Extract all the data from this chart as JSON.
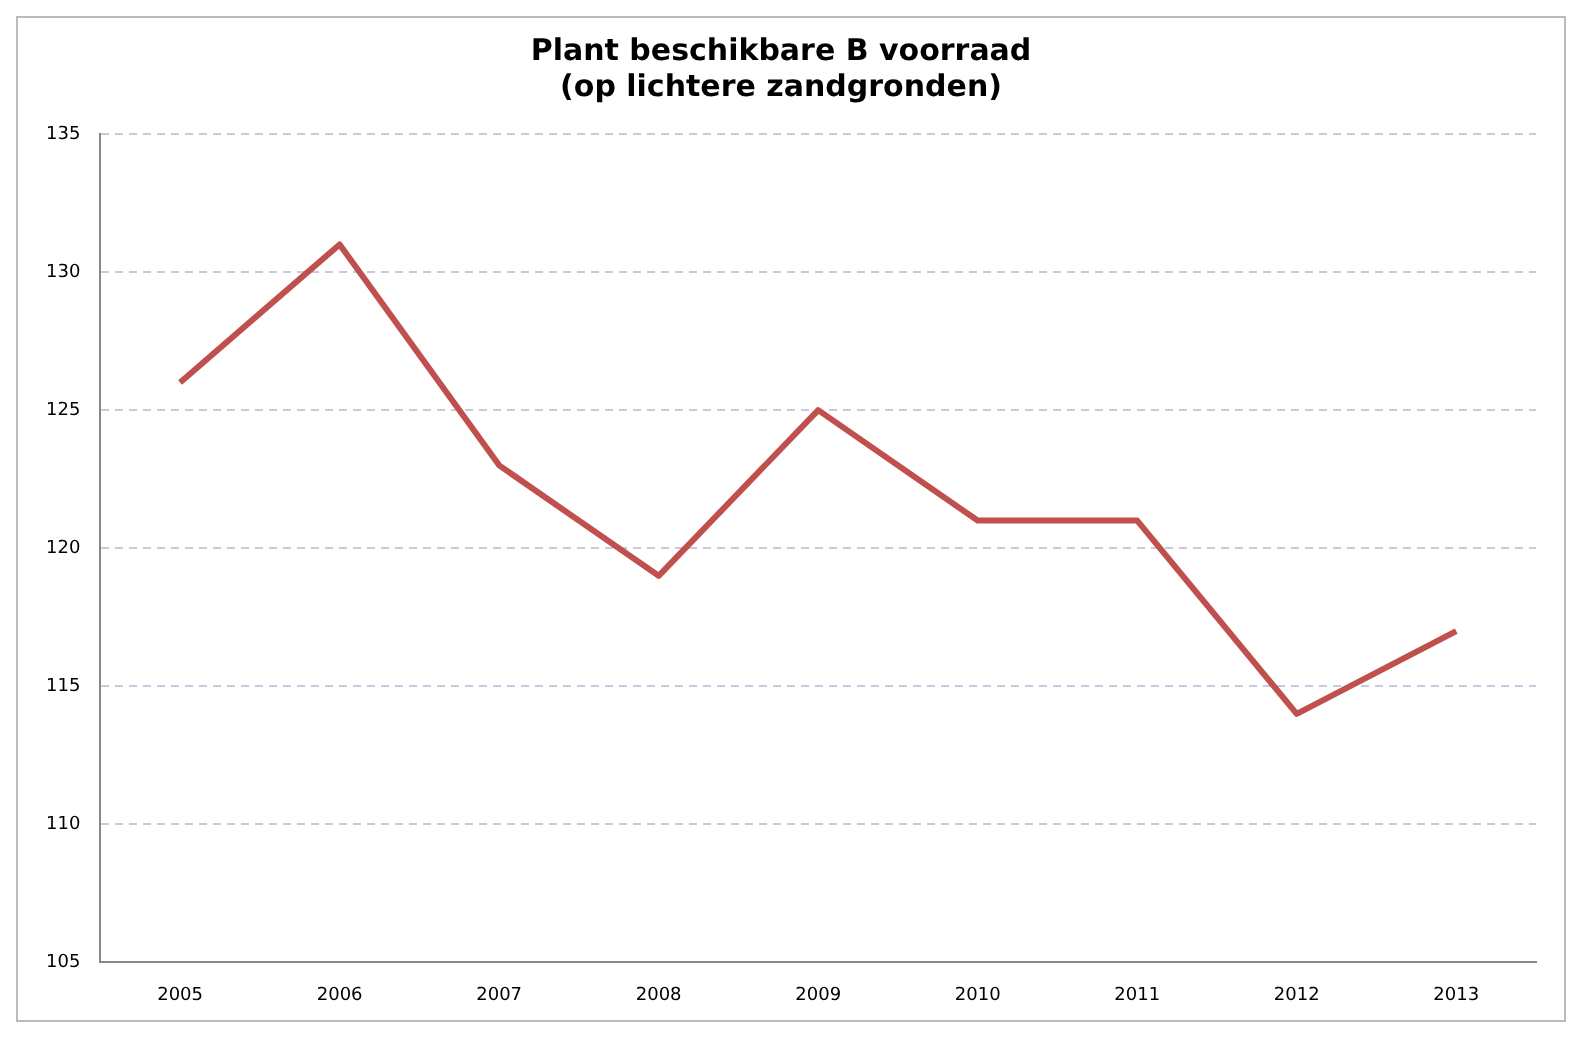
{
  "chart_data": {
    "type": "line",
    "title": "Plant beschikbare B voorraad\n(op lichtere zandgronden)",
    "categories": [
      "2005",
      "2006",
      "2007",
      "2008",
      "2009",
      "2010",
      "2011",
      "2012",
      "2013"
    ],
    "series": [
      {
        "color": "#c0504d",
        "values": [
          126,
          131,
          123,
          119,
          125,
          121,
          121,
          114,
          117
        ]
      }
    ],
    "ylim": [
      105,
      135
    ],
    "yticks": [
      105,
      110,
      115,
      120,
      125,
      130,
      135
    ],
    "grid": "y",
    "legend": false,
    "marker": "none",
    "line_style": "solid"
  }
}
